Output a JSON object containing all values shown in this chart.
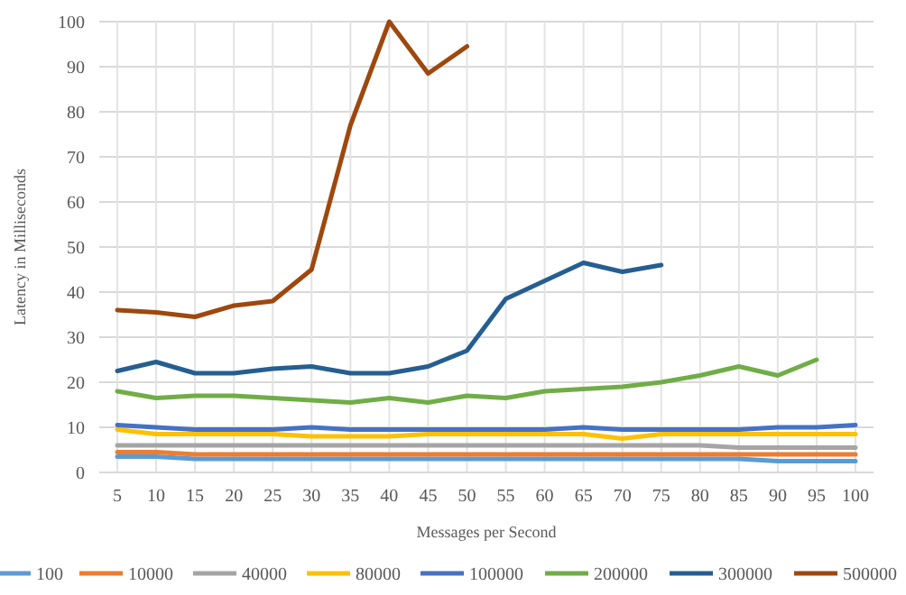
{
  "chart_data": {
    "type": "line",
    "xlabel": "Messages per Second",
    "ylabel": "Latency in Milliseconds",
    "categories": [
      "5",
      "10",
      "15",
      "20",
      "25",
      "30",
      "35",
      "40",
      "45",
      "50",
      "55",
      "60",
      "65",
      "70",
      "75",
      "80",
      "85",
      "90",
      "95",
      "100"
    ],
    "ylim": [
      0,
      100
    ],
    "yticks": [
      0,
      10,
      20,
      30,
      40,
      50,
      60,
      70,
      80,
      90,
      100
    ],
    "grid": true,
    "legend": "bottom",
    "marker": "none",
    "line_style": "solid",
    "series": [
      {
        "name": "100",
        "color": "#5b9bd5",
        "values": [
          3.5,
          3.5,
          3,
          3,
          3,
          3,
          3,
          3,
          3,
          3,
          3,
          3,
          3,
          3,
          3,
          3,
          3,
          2.5,
          2.5,
          2.5
        ]
      },
      {
        "name": "10000",
        "color": "#ed7d31",
        "values": [
          4.5,
          4.5,
          4,
          4,
          4,
          4,
          4,
          4,
          4,
          4,
          4,
          4,
          4,
          4,
          4,
          4,
          4,
          4,
          4,
          4
        ]
      },
      {
        "name": "40000",
        "color": "#a5a5a5",
        "values": [
          6,
          6,
          6,
          6,
          6,
          6,
          6,
          6,
          6,
          6,
          6,
          6,
          6,
          6,
          6,
          6,
          5.5,
          5.5,
          5.5,
          5.5
        ]
      },
      {
        "name": "80000",
        "color": "#ffc000",
        "values": [
          9.5,
          8.5,
          8.5,
          8.5,
          8.5,
          8,
          8,
          8,
          8.5,
          8.5,
          8.5,
          8.5,
          8.5,
          7.5,
          8.5,
          8.5,
          8.5,
          8.5,
          8.5,
          8.5
        ]
      },
      {
        "name": "100000",
        "color": "#4472c4",
        "values": [
          10.5,
          10,
          9.5,
          9.5,
          9.5,
          10,
          9.5,
          9.5,
          9.5,
          9.5,
          9.5,
          9.5,
          10,
          9.5,
          9.5,
          9.5,
          9.5,
          10,
          10,
          10.5
        ]
      },
      {
        "name": "200000",
        "color": "#70ad47",
        "values": [
          18,
          16.5,
          17,
          17,
          16.5,
          16,
          15.5,
          16.5,
          15.5,
          17,
          16.5,
          18,
          18.5,
          19,
          20,
          21.5,
          23.5,
          21.5,
          25,
          null
        ]
      },
      {
        "name": "300000",
        "color": "#255e91",
        "values": [
          22.5,
          24.5,
          22,
          22,
          23,
          23.5,
          22,
          22,
          23.5,
          27,
          38.5,
          42.5,
          46.5,
          44.5,
          46,
          null,
          null,
          null,
          null,
          null
        ]
      },
      {
        "name": "500000",
        "color": "#9e480e",
        "values": [
          36,
          35.5,
          34.5,
          37,
          38,
          45,
          77,
          100,
          88.5,
          94.5,
          null,
          null,
          null,
          null,
          null,
          null,
          null,
          null,
          null,
          null
        ]
      }
    ]
  }
}
